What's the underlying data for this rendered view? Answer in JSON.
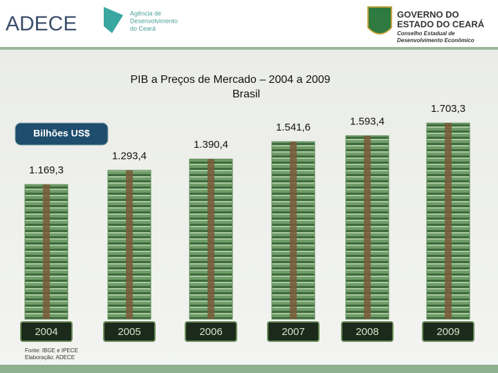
{
  "header": {
    "logo": "ADECE",
    "agency": [
      "Agência de",
      "Desenvolvimento",
      "do Ceará"
    ],
    "government": [
      "GOVERNO DO",
      "ESTADO DO CEARÁ"
    ],
    "council": [
      "Conselho Estadual de",
      "Desenvolvimento Econômico"
    ]
  },
  "chart_data": {
    "type": "bar",
    "title": "PIB a Preços de Mercado – 2004 a 2009",
    "subtitle": "Brasil",
    "unit_badge": "Bilhões US$",
    "categories": [
      "2004",
      "2005",
      "2006",
      "2007",
      "2008",
      "2009"
    ],
    "values": [
      1169.3,
      1293.4,
      1390.4,
      1541.6,
      1593.4,
      1703.3
    ],
    "value_labels": [
      "1.169,3",
      "1.293,4",
      "1.390,4",
      "1.541,6",
      "1.593,4",
      "1.703,3"
    ],
    "ylim": [
      0,
      1800
    ],
    "color": "#5e8f5a"
  },
  "footer": {
    "source": "Fonte: IBGE e IPECE",
    "credit": "Elaboração: ADECE"
  }
}
